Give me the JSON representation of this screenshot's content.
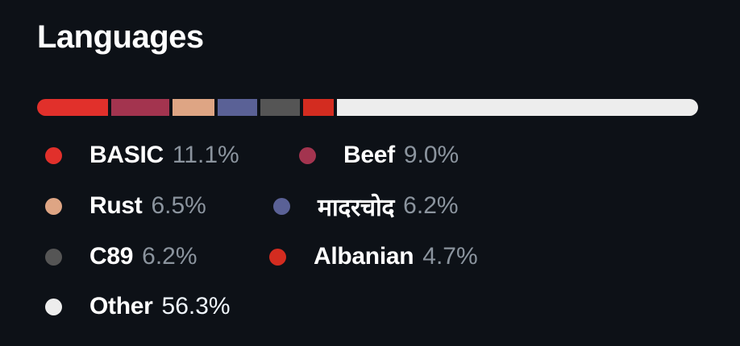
{
  "title": "Languages",
  "languages": [
    {
      "name": "BASIC",
      "percent": "11.1%",
      "value": 11.1,
      "color": "#e1302b"
    },
    {
      "name": "Beef",
      "percent": "9.0%",
      "value": 9.0,
      "color": "#a3344f"
    },
    {
      "name": "Rust",
      "percent": "6.5%",
      "value": 6.5,
      "color": "#dea584"
    },
    {
      "name": "मादरचोद",
      "percent": "6.2%",
      "value": 6.2,
      "color": "#5a6196"
    },
    {
      "name": "C89",
      "percent": "6.2%",
      "value": 6.2,
      "color": "#555555"
    },
    {
      "name": "Albanian",
      "percent": "4.7%",
      "value": 4.7,
      "color": "#d32c20"
    },
    {
      "name": "Other",
      "percent": "56.3%",
      "value": 56.3,
      "color": "#ededed"
    }
  ]
}
